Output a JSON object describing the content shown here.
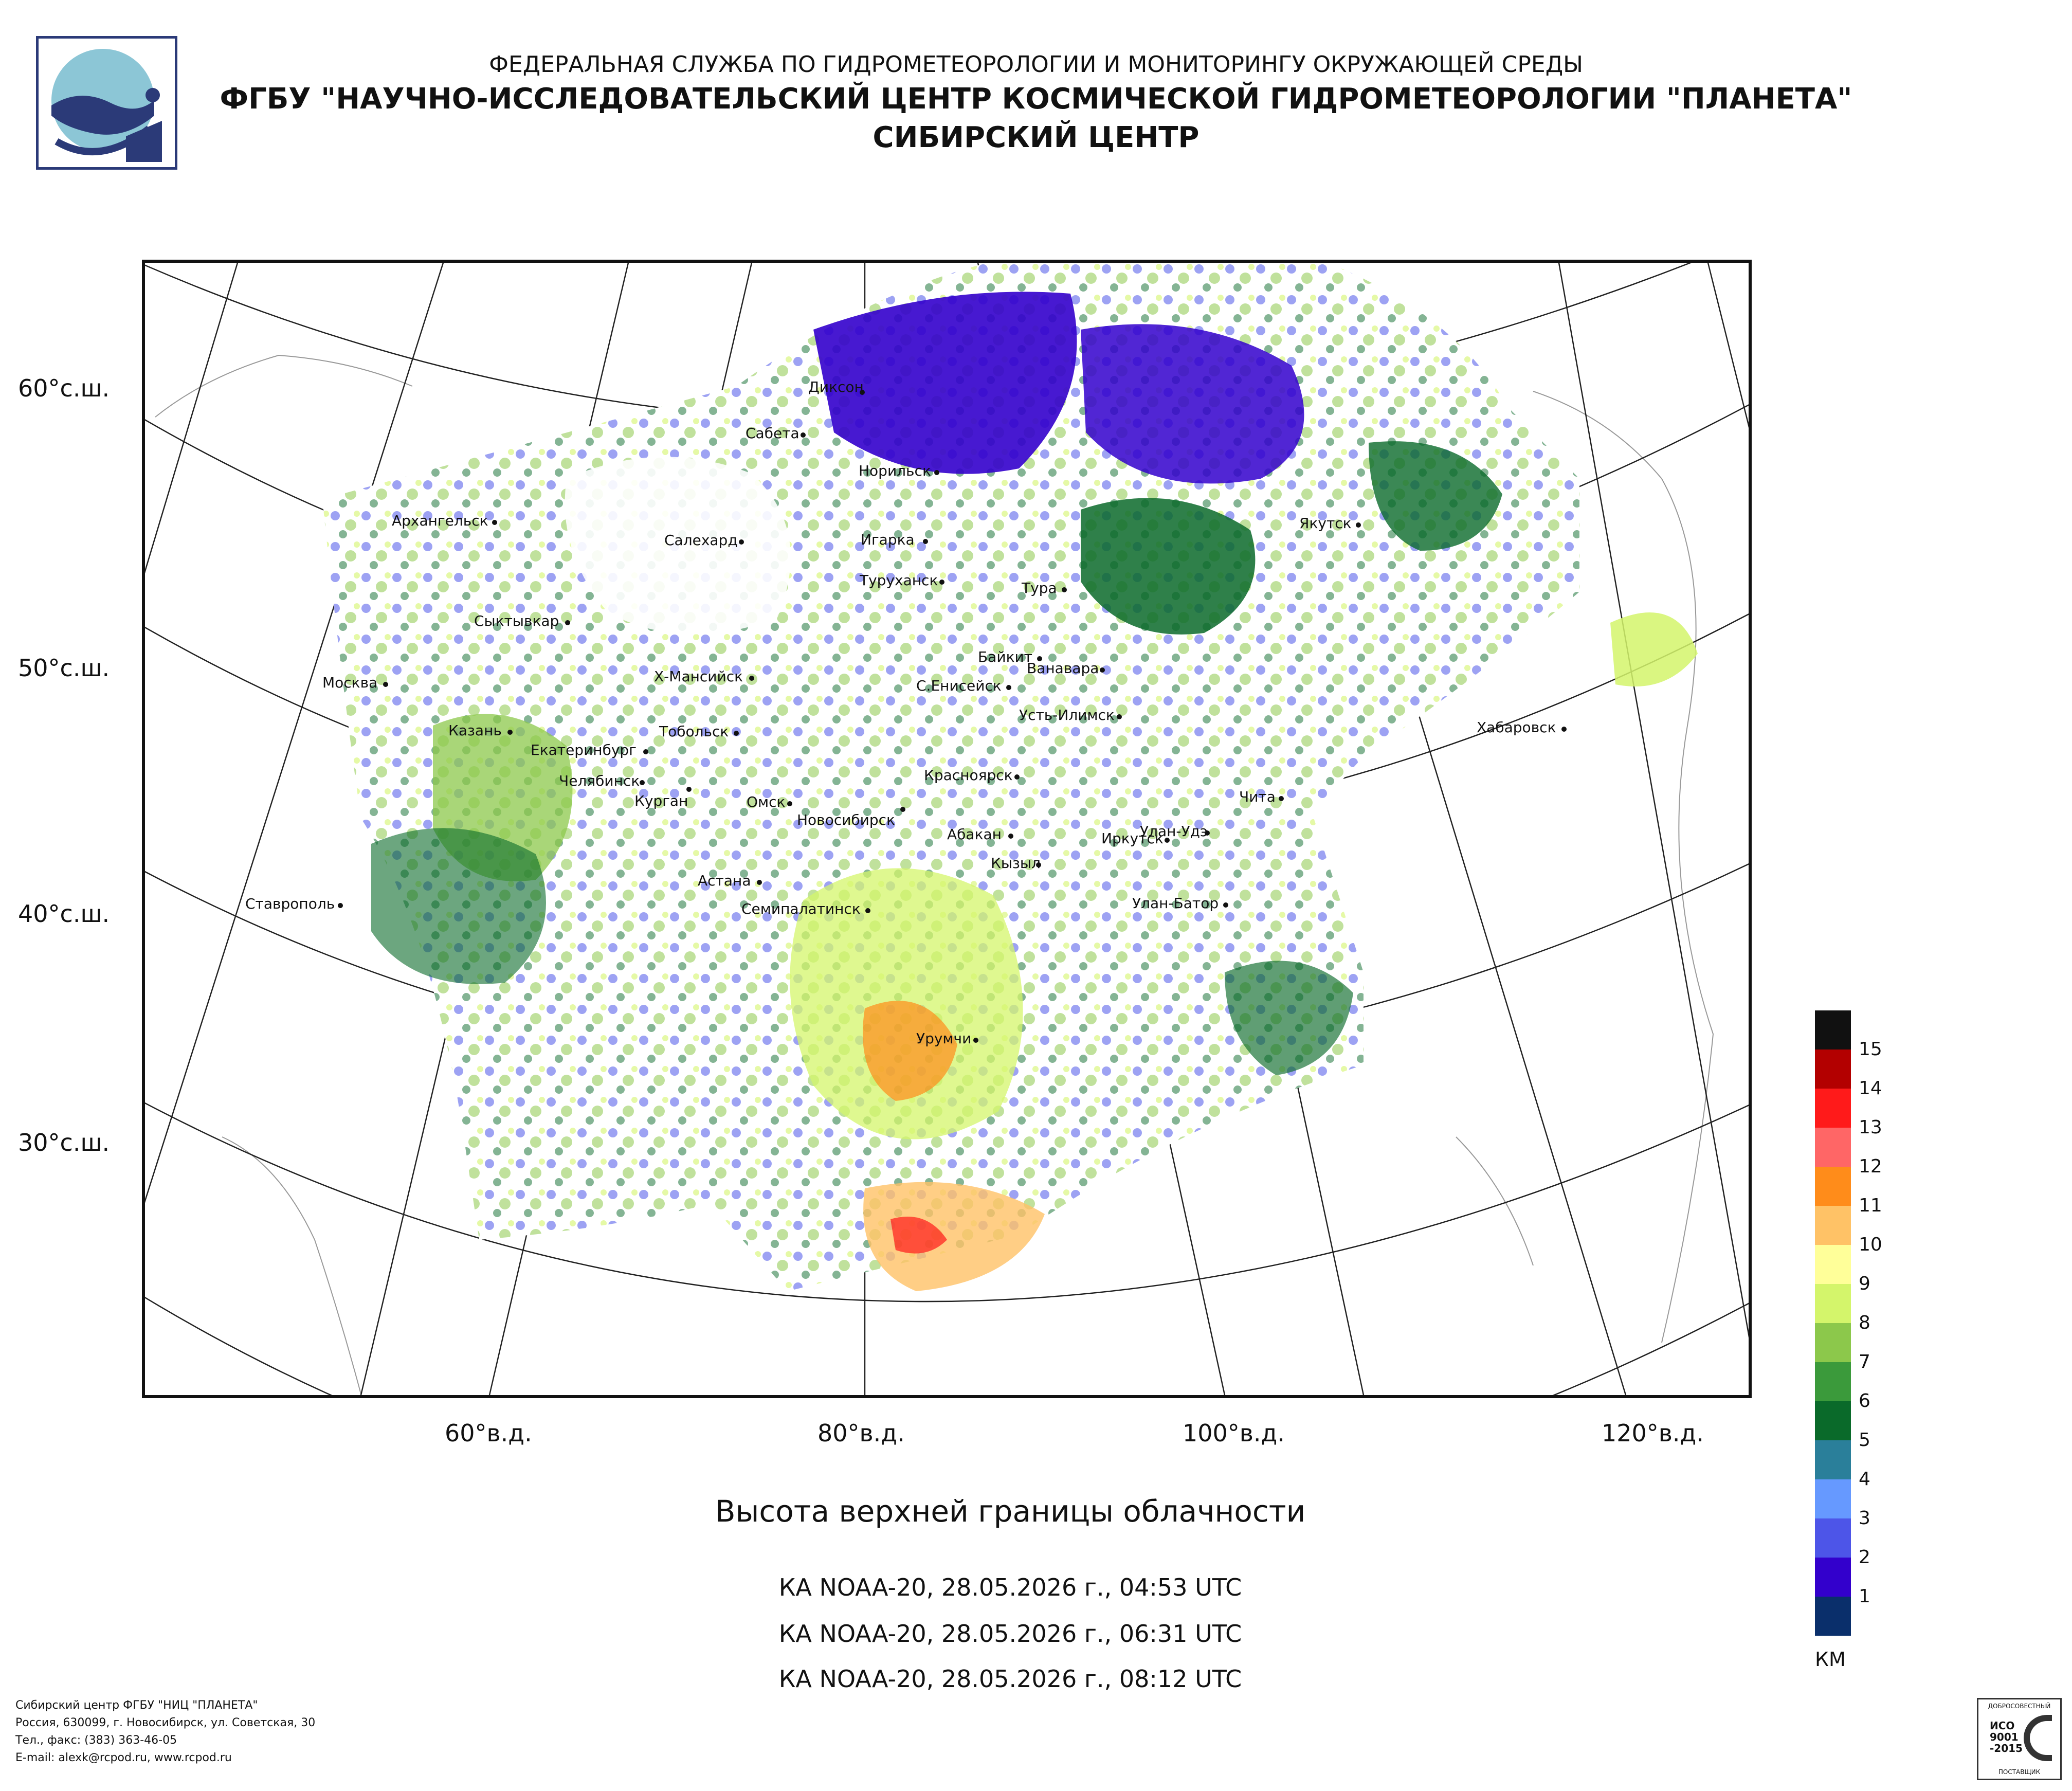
{
  "header": {
    "line1": "ФЕДЕРАЛЬНАЯ СЛУЖБА ПО ГИДРОМЕТЕОРОЛОГИИ И МОНИТОРИНГУ ОКРУЖАЮЩЕЙ СРЕДЫ",
    "line2": "ФГБУ \"НАУЧНО-ИССЛЕДОВАТЕЛЬСКИЙ ЦЕНТР КОСМИЧЕСКОЙ ГИДРОМЕТЕОРОЛОГИИ \"ПЛАНЕТА\"",
    "line3": "СИБИРСКИЙ ЦЕНТР"
  },
  "lat_labels": [
    "60°с.ш.",
    "50°с.ш.",
    "40°с.ш.",
    "30°с.ш."
  ],
  "lon_labels": [
    "60°в.д.",
    "80°в.д.",
    "100°в.д.",
    "120°в.д."
  ],
  "cities": [
    "Диксон",
    "Сабета",
    "Норильск",
    "Архангельск",
    "Салехард",
    "Игарка",
    "Якутск",
    "Туруханск",
    "Тура",
    "Сыктывкар",
    "Байкит",
    "Ванавара",
    "Москва",
    "Х-Мансийск",
    "С.Енисейск",
    "Усть-Илимск",
    "Казань",
    "Тобольск",
    "Хабаровск",
    "Екатеринбург",
    "Красноярск",
    "Челябинск",
    "Чита",
    "Курган",
    "Омск",
    "Новосибирск",
    "Улан-Удэ",
    "Абакан",
    "Иркутск",
    "Кызыл",
    "Ставрополь",
    "Астана",
    "Улан-Батор",
    "Семипалатинск",
    "Урумчи"
  ],
  "title": "Высота верхней границы облачности",
  "passes": [
    "КА NOAA-20, 28.05.2026 г., 04:53 UTC",
    "КА NOAA-20, 28.05.2026 г., 06:31 UTC",
    "КА NOAA-20, 28.05.2026 г., 08:12 UTC"
  ],
  "legend": {
    "unit": "КМ",
    "levels": [
      {
        "label": "15",
        "color": "#111111"
      },
      {
        "label": "14",
        "color": "#b30000"
      },
      {
        "label": "13",
        "color": "#ff1a1a"
      },
      {
        "label": "12",
        "color": "#ff6666"
      },
      {
        "label": "11",
        "color": "#ff8c1a"
      },
      {
        "label": "10",
        "color": "#ffc266"
      },
      {
        "label": "9",
        "color": "#ffff99"
      },
      {
        "label": "8",
        "color": "#d4f56b"
      },
      {
        "label": "7",
        "color": "#8cc84b"
      },
      {
        "label": "6",
        "color": "#3b9a3b"
      },
      {
        "label": "5",
        "color": "#0a6a2a"
      },
      {
        "label": "4",
        "color": "#2a7f9a"
      },
      {
        "label": "3",
        "color": "#6699ff"
      },
      {
        "label": "2",
        "color": "#4d55e8"
      },
      {
        "label": "1",
        "color": "#3300cc"
      },
      {
        "label": "",
        "color": "#0a2f6b"
      }
    ]
  },
  "footer": [
    "Сибирский центр ФГБУ \"НИЦ \"ПЛАНЕТА\"",
    "Россия, 630099, г. Новосибирск, ул. Советская, 30",
    "Тел., факс: (383) 363-46-05",
    "E-mail: alexk@rcpod.ru, www.rcpod.ru"
  ],
  "cert_lines": [
    "ДОБРОСОВЕСТНЫЙ",
    "ИСО",
    "9001",
    "-2015",
    "ПОСТАВЩИК"
  ]
}
